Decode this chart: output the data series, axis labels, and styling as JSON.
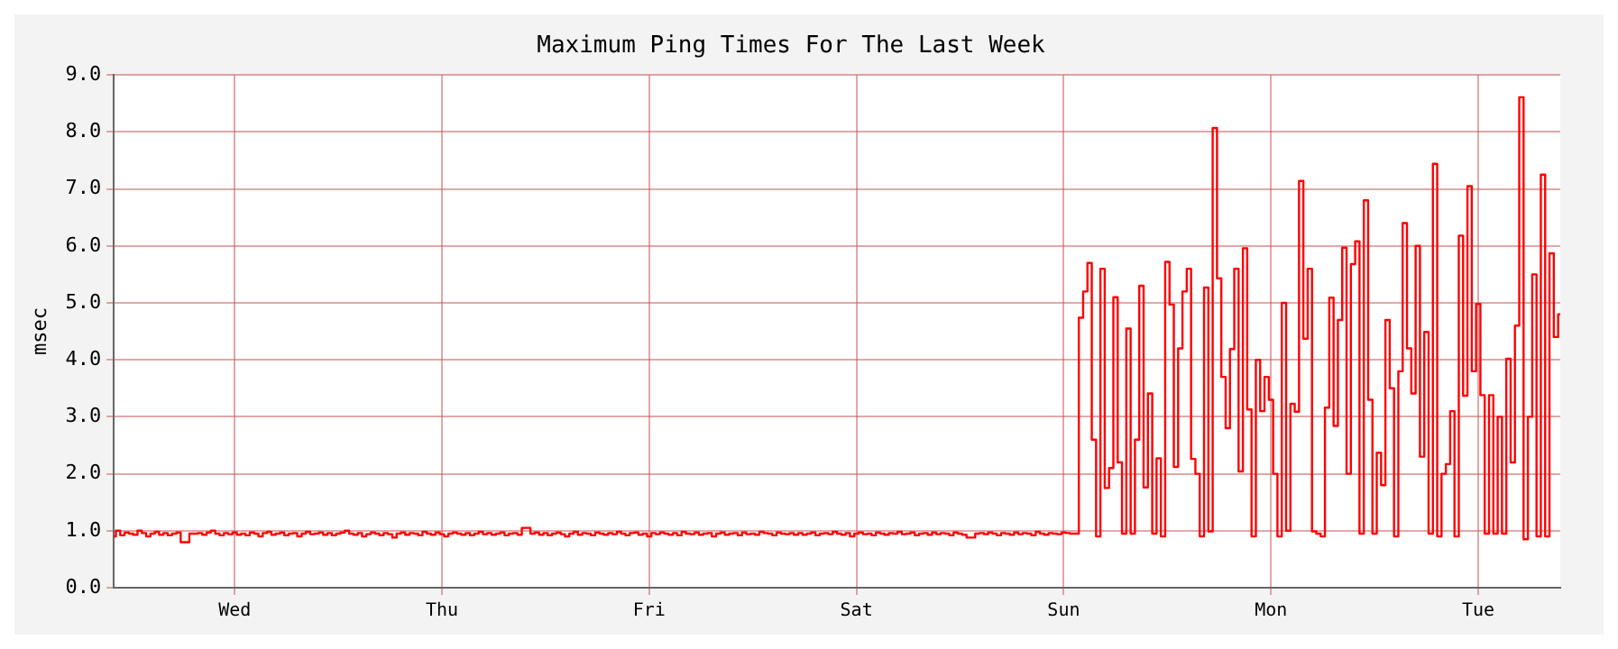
{
  "chart_data": {
    "type": "step",
    "title": "Maximum Ping Times For The Last Week",
    "ylabel": "msec",
    "categories": [
      null,
      null,
      null,
      null,
      null,
      null,
      null,
      null,
      null,
      null,
      null,
      null,
      null,
      null,
      null,
      null,
      null,
      null,
      null,
      null,
      null,
      null,
      null,
      null,
      null,
      null,
      null,
      null,
      "Wed",
      null,
      null,
      null,
      null,
      null,
      null,
      null,
      null,
      null,
      null,
      null,
      null,
      null,
      null,
      null,
      null,
      null,
      null,
      null,
      null,
      null,
      null,
      null,
      null,
      null,
      null,
      null,
      null,
      null,
      null,
      null,
      null,
      null,
      null,
      null,
      null,
      null,
      null,
      null,
      null,
      null,
      null,
      null,
      null,
      null,
      null,
      null,
      "Thu",
      null,
      null,
      null,
      null,
      null,
      null,
      null,
      null,
      null,
      null,
      null,
      null,
      null,
      null,
      null,
      null,
      null,
      null,
      null,
      null,
      null,
      null,
      null,
      null,
      null,
      null,
      null,
      null,
      null,
      null,
      null,
      null,
      null,
      null,
      null,
      null,
      null,
      null,
      null,
      null,
      null,
      null,
      null,
      null,
      null,
      null,
      null,
      "Fri",
      null,
      null,
      null,
      null,
      null,
      null,
      null,
      null,
      null,
      null,
      null,
      null,
      null,
      null,
      null,
      null,
      null,
      null,
      null,
      null,
      null,
      null,
      null,
      null,
      null,
      null,
      null,
      null,
      null,
      null,
      null,
      null,
      null,
      null,
      null,
      null,
      null,
      null,
      null,
      null,
      null,
      null,
      null,
      null,
      null,
      null,
      null,
      "Sat",
      null,
      null,
      null,
      null,
      null,
      null,
      null,
      null,
      null,
      null,
      null,
      null,
      null,
      null,
      null,
      null,
      null,
      null,
      null,
      null,
      null,
      null,
      null,
      null,
      null,
      null,
      null,
      null,
      null,
      null,
      null,
      null,
      null,
      null,
      null,
      null,
      null,
      null,
      null,
      null,
      null,
      null,
      null,
      null,
      null,
      null,
      null,
      "Sun",
      null,
      null,
      null,
      null,
      null,
      null,
      null,
      null,
      null,
      null,
      null,
      null,
      null,
      null,
      null,
      null,
      null,
      null,
      null,
      null,
      null,
      null,
      null,
      null,
      null,
      null,
      null,
      null,
      null,
      null,
      null,
      null,
      null,
      null,
      null,
      null,
      null,
      null,
      null,
      null,
      null,
      null,
      null,
      null,
      null,
      null,
      null,
      "Mon",
      null,
      null,
      null,
      null,
      null,
      null,
      null,
      null,
      null,
      null,
      null,
      null,
      null,
      null,
      null,
      null,
      null,
      null,
      null,
      null,
      null,
      null,
      null,
      null,
      null,
      null,
      null,
      null,
      null,
      null,
      null,
      null,
      null,
      null,
      null,
      null,
      null,
      null,
      null,
      null,
      null,
      null,
      null,
      null,
      null,
      null,
      null,
      "Tue",
      null,
      null,
      null,
      null,
      null,
      null,
      null,
      null,
      null,
      null,
      null,
      null,
      null,
      null,
      null,
      null,
      null,
      null,
      null
    ],
    "ylim": [
      0,
      9
    ],
    "yticks": [
      {
        "value": 0,
        "label": "0.0"
      },
      {
        "value": 1,
        "label": "1.0"
      },
      {
        "value": 2,
        "label": "2.0"
      },
      {
        "value": 3,
        "label": "3.0"
      },
      {
        "value": 4,
        "label": "4.0"
      },
      {
        "value": 5,
        "label": "5.0"
      },
      {
        "value": 6,
        "label": "6.0"
      },
      {
        "value": 7,
        "label": "7.0"
      },
      {
        "value": 8,
        "label": "8.0"
      },
      {
        "value": 9,
        "label": "9.0"
      }
    ],
    "grid": true,
    "series": [
      {
        "color": "#ff0000",
        "values": [
          0.9,
          1.0,
          0.92,
          0.97,
          0.95,
          0.93,
          1.0,
          0.96,
          0.9,
          0.95,
          0.98,
          0.93,
          0.96,
          0.92,
          0.95,
          0.97,
          0.8,
          0.8,
          0.95,
          0.95,
          0.96,
          0.93,
          0.97,
          1.0,
          0.95,
          0.92,
          0.96,
          0.94,
          0.97,
          0.93,
          0.95,
          0.92,
          0.97,
          0.95,
          0.9,
          0.96,
          0.98,
          0.93,
          0.95,
          0.97,
          0.92,
          0.95,
          0.96,
          0.9,
          0.95,
          0.98,
          0.94,
          0.95,
          0.97,
          0.93,
          0.96,
          0.92,
          0.95,
          0.97,
          1.0,
          0.95,
          0.93,
          0.96,
          0.9,
          0.94,
          0.97,
          0.95,
          0.92,
          0.96,
          0.94,
          0.88,
          0.95,
          0.97,
          0.93,
          0.96,
          0.95,
          0.92,
          0.98,
          0.95,
          0.93,
          0.97,
          0.94,
          0.9,
          0.95,
          0.97,
          0.95,
          0.93,
          0.96,
          0.92,
          0.95,
          0.98,
          0.94,
          0.96,
          0.93,
          0.95,
          0.97,
          0.92,
          0.95,
          0.96,
          0.93,
          1.05,
          1.05,
          0.95,
          0.97,
          0.93,
          0.96,
          0.92,
          0.95,
          0.97,
          0.94,
          0.9,
          0.95,
          0.98,
          0.93,
          0.96,
          0.95,
          0.92,
          0.97,
          0.95,
          0.93,
          0.96,
          0.94,
          0.98,
          0.95,
          0.92,
          0.96,
          0.97,
          0.93,
          0.95,
          0.9,
          0.96,
          0.94,
          0.97,
          0.95,
          0.93,
          0.96,
          0.92,
          0.98,
          0.95,
          0.94,
          0.97,
          0.93,
          0.95,
          0.96,
          0.9,
          0.95,
          0.97,
          0.93,
          0.95,
          0.96,
          0.92,
          0.97,
          0.94,
          0.95,
          0.93,
          0.98,
          0.96,
          0.95,
          0.92,
          0.97,
          0.95,
          0.94,
          0.96,
          0.93,
          0.96,
          0.93,
          0.95,
          0.97,
          0.92,
          0.95,
          0.96,
          0.94,
          0.98,
          0.95,
          0.93,
          0.96,
          0.9,
          0.95,
          0.97,
          0.94,
          0.95,
          0.92,
          0.97,
          0.95,
          0.93,
          0.96,
          0.95,
          0.98,
          0.94,
          0.95,
          0.97,
          0.92,
          0.95,
          0.96,
          0.93,
          0.97,
          0.94,
          0.96,
          0.95,
          0.92,
          0.97,
          0.95,
          0.93,
          0.88,
          0.88,
          0.95,
          0.96,
          0.94,
          0.97,
          0.95,
          0.92,
          0.96,
          0.95,
          0.93,
          0.97,
          0.94,
          0.96,
          0.95,
          0.92,
          0.98,
          0.95,
          0.93,
          0.96,
          0.95,
          0.94,
          0.97,
          0.96,
          0.95,
          0.95,
          4.74,
          5.2,
          5.7,
          2.6,
          0.9,
          5.6,
          1.75,
          2.1,
          5.1,
          2.2,
          0.95,
          4.55,
          0.95,
          2.6,
          5.3,
          1.76,
          3.41,
          0.95,
          2.27,
          0.9,
          5.72,
          4.97,
          2.12,
          4.2,
          5.2,
          5.6,
          2.26,
          2.0,
          0.9,
          5.27,
          0.99,
          8.07,
          5.43,
          3.7,
          2.8,
          4.19,
          5.6,
          2.04,
          5.96,
          3.13,
          0.9,
          4.0,
          3.1,
          3.7,
          3.3,
          2.0,
          0.9,
          5.0,
          1.0,
          3.23,
          3.09,
          7.14,
          4.37,
          5.6,
          0.99,
          0.95,
          0.9,
          3.16,
          5.09,
          2.84,
          4.7,
          5.97,
          2.0,
          5.68,
          6.08,
          0.95,
          6.8,
          3.3,
          0.95,
          2.37,
          1.8,
          4.7,
          3.5,
          0.9,
          3.8,
          6.4,
          4.2,
          3.41,
          6.0,
          2.3,
          4.49,
          0.95,
          7.44,
          0.9,
          2.0,
          2.17,
          3.1,
          0.9,
          6.18,
          3.37,
          7.05,
          3.8,
          4.98,
          3.38,
          0.95,
          3.38,
          0.95,
          3.0,
          0.95,
          4.02,
          2.2,
          4.6,
          8.61,
          0.85,
          3.0,
          5.5,
          0.9,
          7.25,
          0.9,
          5.87,
          4.4,
          4.8
        ]
      }
    ]
  }
}
